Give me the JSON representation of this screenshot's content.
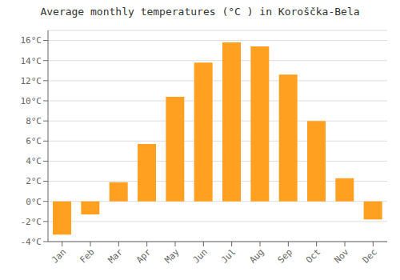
{
  "chart_data": {
    "type": "bar",
    "title": "Average monthly temperatures (°C ) in Koroščka-Bela",
    "categories": [
      "Jan",
      "Feb",
      "Mar",
      "Apr",
      "May",
      "Jun",
      "Jul",
      "Aug",
      "Sep",
      "Oct",
      "Nov",
      "Dec"
    ],
    "values": [
      -3.3,
      -1.3,
      1.9,
      5.7,
      10.4,
      13.8,
      15.8,
      15.4,
      12.6,
      8.0,
      2.3,
      -1.8
    ],
    "color": "#FFA020",
    "ylim": [
      -4,
      17
    ],
    "yticks": [
      {
        "value": -4,
        "label": "-4°C"
      },
      {
        "value": -2,
        "label": "-2°C"
      },
      {
        "value": 0,
        "label": "0°C"
      },
      {
        "value": 2,
        "label": "2°C"
      },
      {
        "value": 4,
        "label": "4°C"
      },
      {
        "value": 6,
        "label": "6°C"
      },
      {
        "value": 8,
        "label": "8°C"
      },
      {
        "value": 10,
        "label": "10°C"
      },
      {
        "value": 12,
        "label": "12°C"
      },
      {
        "value": 14,
        "label": "14°C"
      },
      {
        "value": 16,
        "label": "16°C"
      }
    ],
    "grid": true
  }
}
